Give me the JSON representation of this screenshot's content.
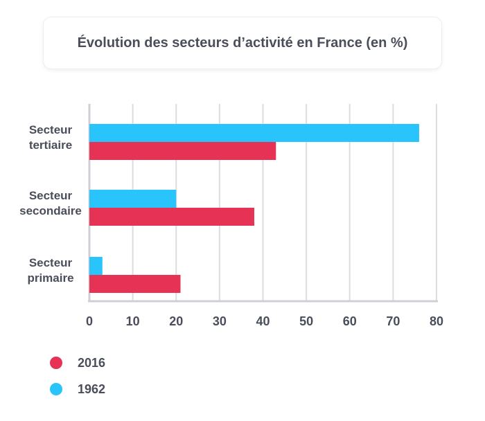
{
  "chart_data": {
    "type": "bar",
    "orientation": "horizontal",
    "title": "Évolution des secteurs d’activité en France (en %)",
    "categories": [
      [
        "Secteur",
        "tertiaire"
      ],
      [
        "Secteur",
        "secondaire"
      ],
      [
        "Secteur",
        "primaire"
      ]
    ],
    "series": [
      {
        "name": "1962",
        "color": "#29c4fb",
        "values": [
          76,
          20,
          3
        ]
      },
      {
        "name": "2016",
        "color": "#e53255",
        "values": [
          43,
          38,
          21
        ]
      }
    ],
    "xlim": [
      0,
      80
    ],
    "xticks": [
      0,
      10,
      20,
      30,
      40,
      50,
      60,
      70,
      80
    ],
    "grid": true,
    "legend": "bottom-left",
    "legend_order": [
      "2016",
      "1962"
    ]
  }
}
